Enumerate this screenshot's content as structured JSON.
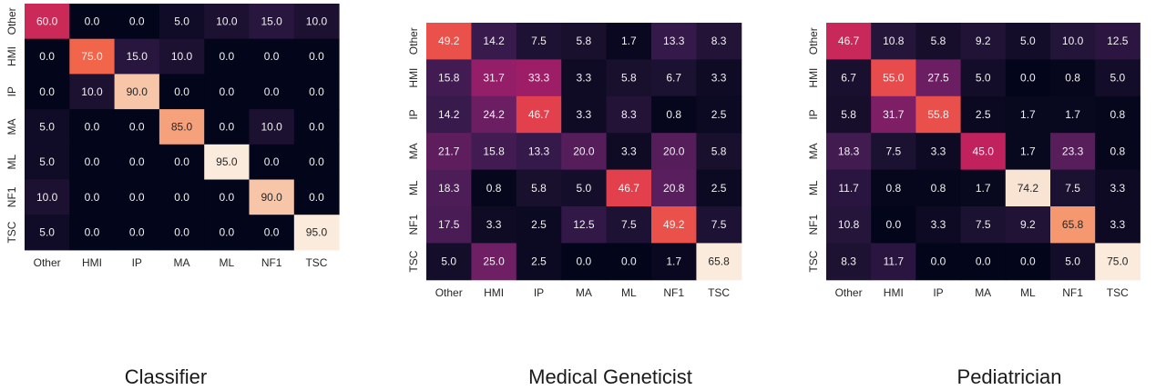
{
  "chart_data": [
    {
      "type": "heatmap",
      "caption": "Classifier",
      "rows": [
        "Other",
        "HMI",
        "IP",
        "MA",
        "ML",
        "NF1",
        "TSC"
      ],
      "cols": [
        "Other",
        "HMI",
        "IP",
        "MA",
        "ML",
        "NF1",
        "TSC"
      ],
      "values": [
        [
          60.0,
          0.0,
          0.0,
          5.0,
          10.0,
          15.0,
          10.0
        ],
        [
          0.0,
          75.0,
          15.0,
          10.0,
          0.0,
          0.0,
          0.0
        ],
        [
          0.0,
          10.0,
          90.0,
          0.0,
          0.0,
          0.0,
          0.0
        ],
        [
          5.0,
          0.0,
          0.0,
          85.0,
          0.0,
          10.0,
          0.0
        ],
        [
          5.0,
          0.0,
          0.0,
          0.0,
          95.0,
          0.0,
          0.0
        ],
        [
          10.0,
          0.0,
          0.0,
          0.0,
          0.0,
          90.0,
          0.0
        ],
        [
          5.0,
          0.0,
          0.0,
          0.0,
          0.0,
          0.0,
          95.0
        ]
      ],
      "vmin": 0,
      "vmax": 95
    },
    {
      "type": "heatmap",
      "caption": "Medical Geneticist",
      "rows": [
        "Other",
        "HMI",
        "IP",
        "MA",
        "ML",
        "NF1",
        "TSC"
      ],
      "cols": [
        "Other",
        "HMI",
        "IP",
        "MA",
        "ML",
        "NF1",
        "TSC"
      ],
      "values": [
        [
          49.2,
          14.2,
          7.5,
          5.8,
          1.7,
          13.3,
          8.3
        ],
        [
          15.8,
          31.7,
          33.3,
          3.3,
          5.8,
          6.7,
          3.3
        ],
        [
          14.2,
          24.2,
          46.7,
          3.3,
          8.3,
          0.8,
          2.5
        ],
        [
          21.7,
          15.8,
          13.3,
          20.0,
          3.3,
          20.0,
          5.8
        ],
        [
          18.3,
          0.8,
          5.8,
          5.0,
          46.7,
          20.8,
          2.5
        ],
        [
          17.5,
          3.3,
          2.5,
          12.5,
          7.5,
          49.2,
          7.5
        ],
        [
          5.0,
          25.0,
          2.5,
          0.0,
          0.0,
          1.7,
          65.8
        ]
      ],
      "vmin": 0,
      "vmax": 65.8
    },
    {
      "type": "heatmap",
      "caption": "Pediatrician",
      "rows": [
        "Other",
        "HMI",
        "IP",
        "MA",
        "ML",
        "NF1",
        "TSC"
      ],
      "cols": [
        "Other",
        "HMI",
        "IP",
        "MA",
        "ML",
        "NF1",
        "TSC"
      ],
      "values": [
        [
          46.7,
          10.8,
          5.8,
          9.2,
          5.0,
          10.0,
          12.5
        ],
        [
          6.7,
          55.0,
          27.5,
          5.0,
          0.0,
          0.8,
          5.0
        ],
        [
          5.8,
          31.7,
          55.8,
          2.5,
          1.7,
          1.7,
          0.8
        ],
        [
          18.3,
          7.5,
          3.3,
          45.0,
          1.7,
          23.3,
          0.8
        ],
        [
          11.7,
          0.8,
          0.8,
          1.7,
          74.2,
          7.5,
          3.3
        ],
        [
          10.8,
          0.0,
          3.3,
          7.5,
          9.2,
          65.8,
          3.3
        ],
        [
          8.3,
          11.7,
          0.0,
          0.0,
          0.0,
          5.0,
          75.0
        ]
      ],
      "vmin": 0,
      "vmax": 75.0
    }
  ],
  "colormap": "rocket"
}
